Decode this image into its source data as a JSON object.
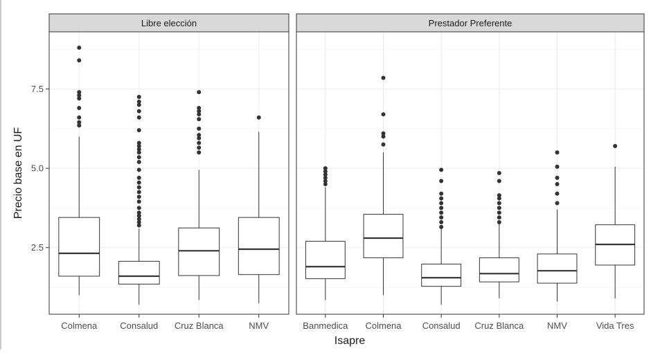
{
  "chart_data": {
    "type": "boxplot",
    "xlabel": "Isapre",
    "ylabel": "Precio base en UF",
    "y_ticks": [
      2.5,
      5.0,
      7.5
    ],
    "y_tick_labels": [
      "2.5",
      "5.0",
      "7.5"
    ],
    "ylim": [
      0.4,
      9.3
    ],
    "grid": true,
    "panels": [
      {
        "label": "Libre elección",
        "categories": [
          {
            "name": "Colmena",
            "min": 1.0,
            "q1": 1.6,
            "median": 2.32,
            "q3": 3.45,
            "max": 6.0,
            "outliers": [
              6.35,
              6.45,
              6.6,
              6.9,
              7.2,
              7.3,
              7.4,
              8.4,
              8.8
            ]
          },
          {
            "name": "Consalud",
            "min": 0.7,
            "q1": 1.35,
            "median": 1.6,
            "q3": 2.07,
            "max": 3.1,
            "outliers": [
              3.2,
              3.3,
              3.4,
              3.5,
              3.6,
              3.75,
              3.95,
              4.1,
              4.25,
              4.4,
              4.55,
              4.7,
              4.95,
              5.2,
              5.35,
              5.5,
              5.6,
              5.7,
              5.8,
              6.2,
              6.6,
              6.8,
              7.0,
              7.1,
              7.25
            ]
          },
          {
            "name": "Cruz Blanca",
            "min": 0.85,
            "q1": 1.62,
            "median": 2.4,
            "q3": 3.12,
            "max": 4.95,
            "outliers": [
              5.5,
              5.65,
              5.8,
              5.95,
              6.05,
              6.25,
              6.55,
              6.7,
              6.8,
              6.9,
              7.4
            ]
          },
          {
            "name": "NMV",
            "min": 0.75,
            "q1": 1.65,
            "median": 2.45,
            "q3": 3.45,
            "max": 6.15,
            "outliers": [
              6.6
            ]
          }
        ]
      },
      {
        "label": "Prestador Preferente",
        "categories": [
          {
            "name": "Banmedica",
            "min": 0.85,
            "q1": 1.52,
            "median": 1.9,
            "q3": 2.7,
            "max": 4.4,
            "outliers": [
              4.5,
              4.6,
              4.7,
              4.8,
              4.9,
              5.0
            ]
          },
          {
            "name": "Colmena",
            "min": 1.0,
            "q1": 2.18,
            "median": 2.8,
            "q3": 3.55,
            "max": 5.5,
            "outliers": [
              5.75,
              6.0,
              6.1,
              6.7,
              7.85
            ]
          },
          {
            "name": "Consalud",
            "min": 0.7,
            "q1": 1.28,
            "median": 1.55,
            "q3": 1.98,
            "max": 3.1,
            "outliers": [
              3.15,
              3.3,
              3.45,
              3.6,
              3.75,
              3.9,
              4.05,
              4.2,
              4.6,
              4.95
            ]
          },
          {
            "name": "Cruz Blanca",
            "min": 0.9,
            "q1": 1.42,
            "median": 1.68,
            "q3": 2.18,
            "max": 3.25,
            "outliers": [
              3.3,
              3.45,
              3.6,
              3.75,
              3.9,
              4.05,
              4.15,
              4.6,
              4.85
            ]
          },
          {
            "name": "NMV",
            "min": 0.8,
            "q1": 1.38,
            "median": 1.77,
            "q3": 2.3,
            "max": 3.7,
            "outliers": [
              3.9,
              4.2,
              4.5,
              4.7,
              5.05,
              5.5
            ]
          },
          {
            "name": "Vida Tres",
            "min": 0.9,
            "q1": 1.95,
            "median": 2.6,
            "q3": 3.22,
            "max": 5.05,
            "outliers": [
              5.7
            ]
          }
        ]
      }
    ],
    "colors": {
      "box_stroke": "#333333",
      "box_fill": "#ffffff",
      "strip_fill": "#d9d9d9",
      "grid": "#ebebeb"
    }
  }
}
